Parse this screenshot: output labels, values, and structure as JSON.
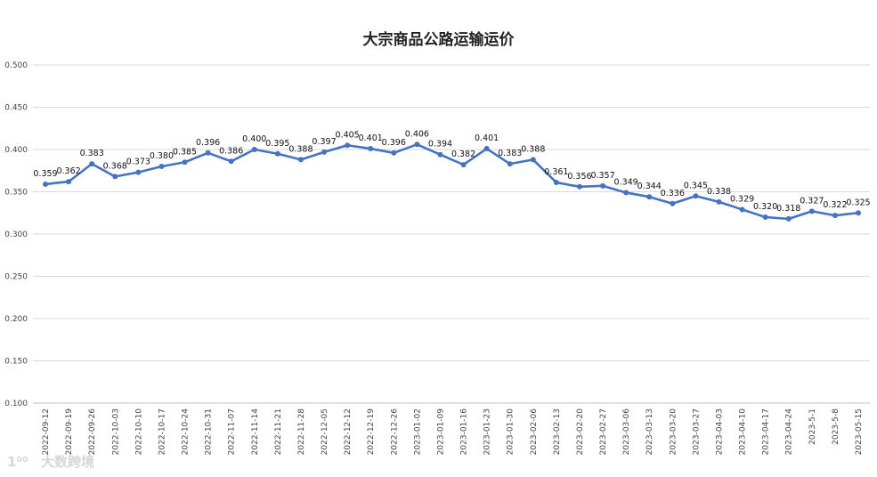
{
  "chart_data": {
    "type": "line",
    "title": "大宗商品公路运输运价",
    "xlabel": "",
    "ylabel": "",
    "ylim": [
      0.1,
      0.5
    ],
    "yticks": [
      "0.500",
      "0.450",
      "0.400",
      "0.350",
      "0.300",
      "0.250",
      "0.200",
      "0.150",
      "0.100"
    ],
    "ytick_values": [
      0.5,
      0.45,
      0.4,
      0.35,
      0.3,
      0.25,
      0.2,
      0.15,
      0.1
    ],
    "grid": true,
    "legend": "none",
    "line_color": "#4472C4",
    "categories": [
      "2022-09-12",
      "2022-09-19",
      "2022-09-26",
      "2022-10-03",
      "2022-10-10",
      "2022-10-17",
      "2022-10-24",
      "2022-10-31",
      "2022-11-07",
      "2022-11-14",
      "2022-11-21",
      "2022-11-28",
      "2022-12-05",
      "2022-12-12",
      "2022-12-19",
      "2022-12-26",
      "2023-01-02",
      "2023-01-09",
      "2023-01-16",
      "2023-01-23",
      "2023-01-30",
      "2023-02-06",
      "2023-02-13",
      "2023-02-20",
      "2023-02-27",
      "2023-03-06",
      "2023-03-13",
      "2023-03-20",
      "2023-03-27",
      "2023-04-03",
      "2023-04-10",
      "2023-04-17",
      "2023-04-24",
      "2023-5-1",
      "2023-5-8",
      "2023-05-15"
    ],
    "series": [
      {
        "values": [
          0.359,
          0.362,
          0.383,
          0.368,
          0.373,
          0.38,
          0.385,
          0.396,
          0.386,
          0.4,
          0.395,
          0.388,
          0.397,
          0.405,
          0.401,
          0.396,
          0.406,
          0.394,
          0.382,
          0.401,
          0.383,
          0.388,
          0.361,
          0.356,
          0.357,
          0.349,
          0.344,
          0.336,
          0.345,
          0.338,
          0.329,
          0.32,
          0.318,
          0.327,
          0.322,
          0.325
        ],
        "labels": [
          "0.359",
          "0.362",
          "0.383",
          "0.368",
          "0.373",
          "0.380",
          "0.385",
          "0.396",
          "0.386",
          "0.400",
          "0.395",
          "0.388",
          "0.397",
          "0.405",
          "0.401",
          "0.396",
          "0.406",
          "0.394",
          "0.382",
          "0.401",
          "0.383",
          "0.388",
          "0.361",
          "0.356",
          "0.357",
          "0.349",
          "0.344",
          "0.336",
          "0.345",
          "0.338",
          "0.329",
          "0.320",
          "0.318",
          "0.327",
          "0.322",
          "0.325"
        ]
      }
    ]
  },
  "watermark": {
    "text": "大数跨境",
    "logo": "1⁰⁰"
  }
}
